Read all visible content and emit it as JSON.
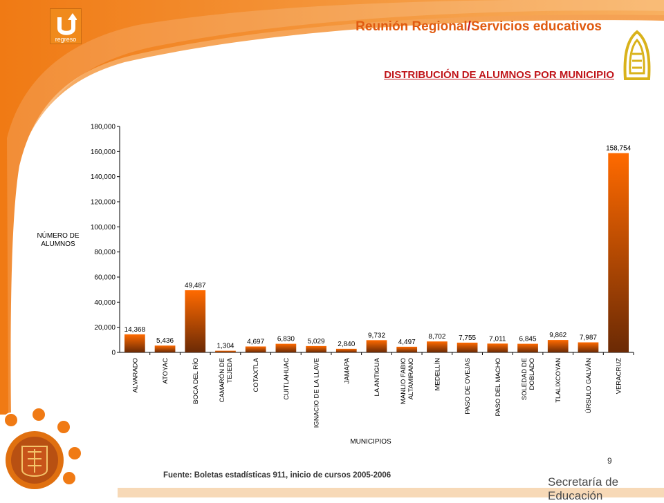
{
  "nav": {
    "back_label": "regreso"
  },
  "header": {
    "title_part1": "Reunión Regional",
    "title_sep": "/",
    "title_part2": "Servicios educativos"
  },
  "slide": {
    "subtitle": "DISTRIBUCIÓN DE ALUMNOS POR MUNICIPIO",
    "source": "Fuente: Boletas estadísticas 911, inicio de cursos 2005-2006",
    "page_number": "9",
    "footer_org": "Secretaría de Educación"
  },
  "colors": {
    "accent_orange": "#f08a1c",
    "title_red": "#c0151a",
    "bar_top": "#ff6a00",
    "bar_bottom": "#6b2a05"
  },
  "chart_data": {
    "type": "bar",
    "ylabel": "NÚMERO DE ALUMNOS",
    "xlabel": "MUNICIPIOS",
    "ylim": [
      0,
      180000
    ],
    "yticks": [
      "0",
      "20,000",
      "40,000",
      "60,000",
      "80,000",
      "100,000",
      "120,000",
      "140,000",
      "160,000",
      "180,000"
    ],
    "grid": false,
    "categories": [
      "ALVARADO",
      "ATOYAC",
      "BOCA DEL RÍO",
      "CAMARÓN DE TEJEDA",
      "COTAXTLA",
      "CUITLAHUAC",
      "IGNACIO DE LA LLAVE",
      "JAMAPA",
      "LA ANTIGUA",
      "MANLIO FABIO ALTAMIRANO",
      "MEDELLÍN",
      "PASO DE OVEJAS",
      "PASO DEL MACHO",
      "SOLEDAD DE DOBLADO",
      "TLALIXCOYAN",
      "ÚRSULO GALVÁN",
      "VERACRUZ"
    ],
    "values": [
      14368,
      5436,
      49487,
      1304,
      4697,
      6830,
      5029,
      2840,
      9732,
      4497,
      8702,
      7755,
      7011,
      6845,
      9862,
      7987,
      158754
    ],
    "value_labels": [
      "14,368",
      "5,436",
      "49,487",
      "1,304",
      "4,697",
      "6,830",
      "5,029",
      "2,840",
      "9,732",
      "4,497",
      "8,702",
      "7,755",
      "7,011",
      "6,845",
      "9,862",
      "7,987",
      "158,754"
    ]
  }
}
